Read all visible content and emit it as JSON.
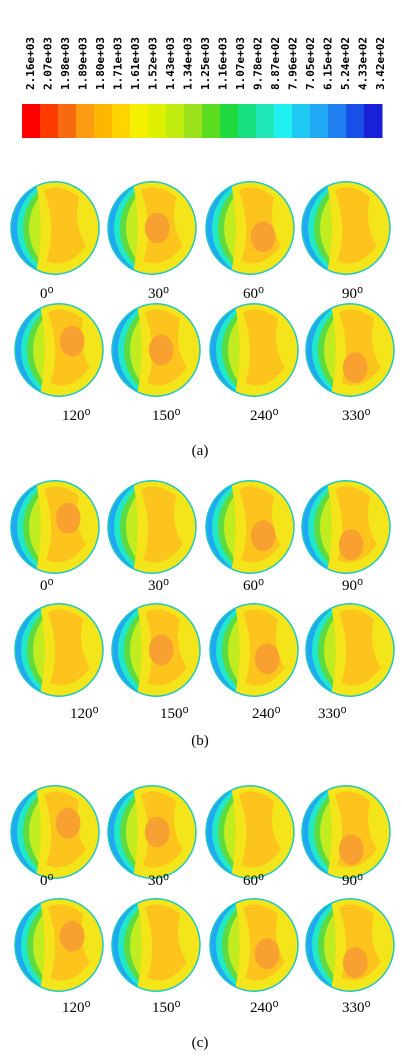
{
  "colorbar": {
    "labels": [
      "2.16e+03",
      "2.07e+03",
      "1.98e+03",
      "1.89e+03",
      "1.80e+03",
      "1.71e+03",
      "1.61e+03",
      "1.52e+03",
      "1.43e+03",
      "1.34e+03",
      "1.25e+03",
      "1.16e+03",
      "1.07e+03",
      "9.78e+02",
      "8.87e+02",
      "7.96e+02",
      "7.05e+02",
      "6.15e+02",
      "5.24e+02",
      "4.33e+02",
      "3.42e+02"
    ],
    "colors": [
      "#ff0000",
      "#ff3c00",
      "#f86a10",
      "#fc9a10",
      "#fcb800",
      "#ffd400",
      "#f4f000",
      "#dcf000",
      "#c0ec10",
      "#9ce21c",
      "#5cdc20",
      "#20d840",
      "#18e080",
      "#20e8b8",
      "#20f0f0",
      "#20c8f4",
      "#20a8f4",
      "#2080f0",
      "#1850e8",
      "#1820d8"
    ]
  },
  "panels": [
    {
      "label": "(a)",
      "angles": [
        "0⁰",
        "30⁰",
        "60⁰",
        "90⁰",
        "120⁰",
        "150⁰",
        "240⁰",
        "330⁰"
      ]
    },
    {
      "label": "(b)",
      "angles": [
        "0⁰",
        "30⁰",
        "60⁰",
        "90⁰",
        "120⁰",
        "150⁰",
        "240⁰",
        "330⁰"
      ]
    },
    {
      "label": "(c)",
      "angles": [
        "0⁰",
        "30⁰",
        "60⁰",
        "90⁰",
        "120⁰",
        "150⁰",
        "240⁰",
        "330⁰"
      ]
    }
  ]
}
